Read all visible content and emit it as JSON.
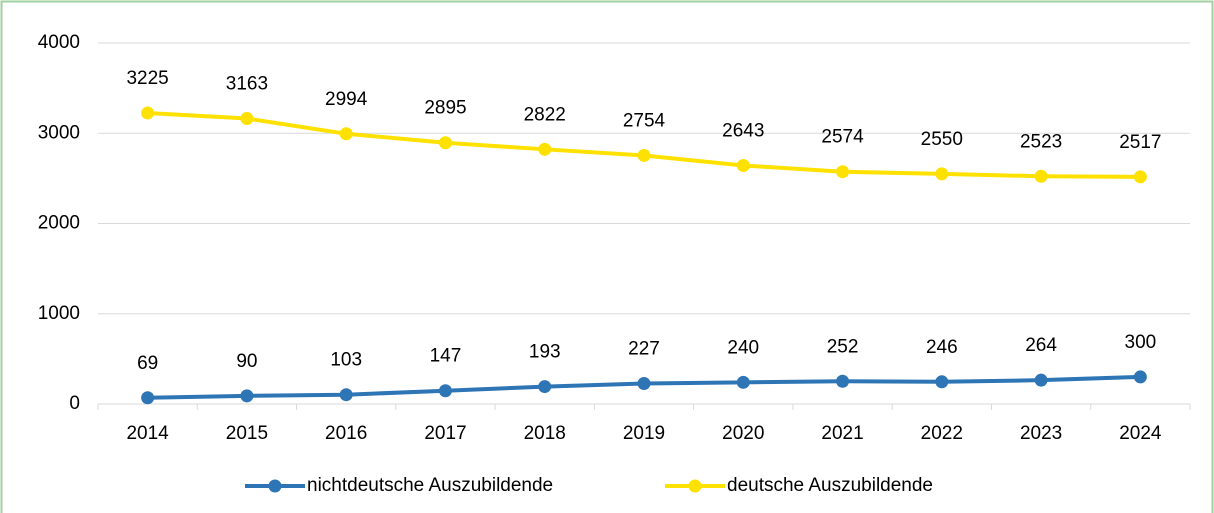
{
  "chart_data": {
    "type": "line",
    "categories": [
      "2014",
      "2015",
      "2016",
      "2017",
      "2018",
      "2019",
      "2020",
      "2021",
      "2022",
      "2023",
      "2024"
    ],
    "series": [
      {
        "name": "nichtdeutsche Auszubildende",
        "color": "#2e75b6",
        "values": [
          69,
          90,
          103,
          147,
          193,
          227,
          240,
          252,
          246,
          264,
          300
        ]
      },
      {
        "name": "deutsche Auszubildende",
        "color": "#ffe100",
        "values": [
          3225,
          3163,
          2994,
          2895,
          2822,
          2754,
          2643,
          2574,
          2550,
          2523,
          2517
        ]
      }
    ],
    "ylim": [
      0,
      4000
    ],
    "yticks": [
      0,
      1000,
      2000,
      3000,
      4000
    ],
    "grid": true,
    "legend": "bottom"
  }
}
